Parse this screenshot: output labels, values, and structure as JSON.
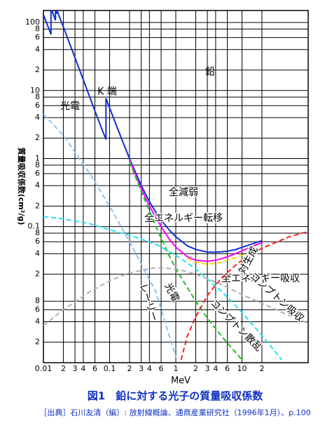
{
  "chart_data": {
    "type": "line",
    "title": "図1　鉛に対する光子の質量吸収係数",
    "subtitle": "［出典］石川友清（編）: 放射線概論、通商産業研究社（1996年1月）、p.100",
    "x_label": "MeV",
    "y_label": "質量吸収係数(cm²/g)",
    "annotations": [
      "鉛",
      "光電",
      "K 端"
    ],
    "log_x": true,
    "log_y": true,
    "grid": true,
    "xlim": [
      0.01,
      100
    ],
    "ylim": [
      0.001,
      150
    ],
    "xticks": [
      0.01,
      {
        "value": 0.02,
        "label": "2"
      },
      {
        "value": 0.03,
        "label": "3"
      },
      {
        "value": 0.04,
        "label": "4"
      },
      {
        "value": 0.06,
        "label": "6"
      },
      0.1,
      {
        "value": 0.2,
        "label": "2"
      },
      {
        "value": 0.3,
        "label": "3"
      },
      {
        "value": 0.4,
        "label": "4"
      },
      {
        "value": 0.6,
        "label": "6"
      },
      1,
      {
        "value": 2,
        "label": "2"
      },
      {
        "value": 3,
        "label": "3"
      },
      {
        "value": 4,
        "label": "4"
      },
      {
        "value": 6,
        "label": "6"
      },
      10,
      {
        "value": 20,
        "label": "2"
      }
    ],
    "yticks": [
      100,
      {
        "value": 80,
        "label": "8"
      },
      {
        "value": 60,
        "label": "6"
      },
      {
        "value": 40,
        "label": "4"
      },
      {
        "value": 20,
        "label": "2"
      },
      10,
      {
        "value": 8,
        "label": "8"
      },
      {
        "value": 6,
        "label": "6"
      },
      {
        "value": 4,
        "label": "4"
      },
      {
        "value": 2,
        "label": "2"
      },
      1,
      {
        "value": 0.8,
        "label": "8"
      },
      {
        "value": 0.6,
        "label": "6"
      },
      {
        "value": 0.4,
        "label": "4"
      },
      {
        "value": 0.2,
        "label": "2"
      },
      0.1,
      {
        "value": 0.08,
        "label": "8"
      },
      {
        "value": 0.06,
        "label": "6"
      },
      {
        "value": 0.04,
        "label": "4"
      },
      {
        "value": 0.02,
        "label": "2"
      },
      {
        "value": 0.008,
        "label": "8"
      },
      {
        "value": 0.006,
        "label": "6"
      },
      {
        "value": 0.004,
        "label": "4"
      },
      {
        "value": 0.002,
        "label": "2"
      }
    ],
    "series": [
      {
        "name": "全減弱",
        "color": "#1030d0",
        "dash": false,
        "x": [
          0.01,
          0.013,
          0.013,
          0.0152,
          0.0152,
          0.0159,
          0.0159,
          0.02,
          0.03,
          0.04,
          0.05,
          0.06,
          0.08,
          0.088,
          0.088,
          0.1,
          0.15,
          0.2,
          0.3,
          0.4,
          0.5,
          0.6,
          0.8,
          1,
          1.5,
          2,
          3,
          4,
          5,
          6,
          8,
          10,
          15,
          20
        ],
        "values": [
          130.6,
          66.7,
          162.9,
          107.6,
          148.5,
          134.9,
          153.7,
          86.4,
          30.3,
          14.4,
          8.04,
          5.02,
          2.42,
          1.91,
          7.68,
          5.55,
          2.01,
          0.999,
          0.403,
          0.232,
          0.161,
          0.125,
          0.0887,
          0.071,
          0.0522,
          0.0461,
          0.0423,
          0.042,
          0.0427,
          0.0436,
          0.0459,
          0.0497,
          0.0566,
          0.0621
        ]
      },
      {
        "name": "全エネルギー転移",
        "color": "#ff00ff",
        "dash": false,
        "x": [
          0.2,
          0.3,
          0.4,
          0.5,
          0.6,
          0.8,
          1,
          1.5,
          2,
          3,
          4,
          5,
          6,
          8,
          10,
          15,
          20
        ],
        "values": [
          0.95,
          0.36,
          0.2,
          0.135,
          0.1,
          0.065,
          0.05,
          0.036,
          0.032,
          0.031,
          0.032,
          0.034,
          0.036,
          0.04,
          0.044,
          0.052,
          0.058
        ]
      },
      {
        "name": "全エネルギー吸収",
        "color": "#ffd000",
        "dash": true,
        "x": [
          1.5,
          2,
          3,
          4,
          5,
          6,
          8,
          10,
          15,
          20
        ],
        "values": [
          0.034,
          0.03,
          0.028,
          0.029,
          0.03,
          0.032,
          0.035,
          0.038,
          0.045,
          0.05
        ]
      },
      {
        "name": "光電",
        "color": "#20c020",
        "dash": true,
        "x": [
          0.2,
          0.3,
          0.4,
          0.5,
          0.6,
          0.8,
          1,
          2,
          3,
          5,
          10
        ],
        "values": [
          0.9,
          0.33,
          0.17,
          0.1,
          0.068,
          0.037,
          0.024,
          0.008,
          0.0045,
          0.0024,
          0.0011
        ]
      },
      {
        "name": "対生成",
        "color": "#ff2020",
        "dash": true,
        "x": [
          1.2,
          1.5,
          2,
          3,
          4,
          6,
          8,
          10,
          15,
          20,
          50,
          100
        ],
        "values": [
          0.0011,
          0.0025,
          0.0047,
          0.0097,
          0.014,
          0.021,
          0.027,
          0.032,
          0.041,
          0.048,
          0.07,
          0.085
        ]
      },
      {
        "name": "コンプトン散乱",
        "color": "#20e0f0",
        "dash": true,
        "x": [
          0.01,
          0.02,
          0.05,
          0.1,
          0.2,
          0.5,
          1,
          2,
          5,
          10,
          20,
          40
        ],
        "values": [
          0.14,
          0.13,
          0.11,
          0.09,
          0.075,
          0.055,
          0.038,
          0.024,
          0.011,
          0.0055,
          0.0025,
          0.0011
        ]
      },
      {
        "name": "コンプトン吸収",
        "color": "#b0b0b0",
        "dash": true,
        "x": [
          0.01,
          0.02,
          0.05,
          0.1,
          0.2,
          0.5,
          1,
          2,
          5,
          10,
          20,
          50,
          100
        ],
        "values": [
          0.0035,
          0.006,
          0.011,
          0.016,
          0.021,
          0.025,
          0.024,
          0.02,
          0.014,
          0.01,
          0.0075,
          0.005,
          0.0038
        ]
      },
      {
        "name": "レーリー",
        "color": "#90c0f0",
        "dash": true,
        "x": [
          0.01,
          0.02,
          0.05,
          0.1,
          0.2,
          0.5,
          1
        ],
        "values": [
          4.5,
          2.2,
          0.6,
          0.2,
          0.06,
          0.011,
          0.0012
        ]
      }
    ]
  }
}
